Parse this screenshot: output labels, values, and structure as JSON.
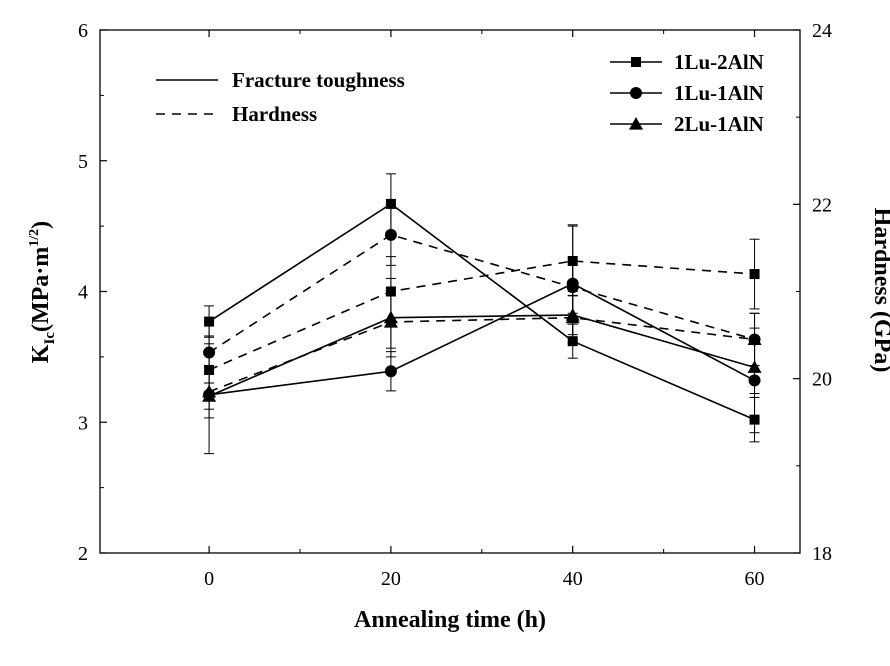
{
  "chart_data": {
    "type": "line",
    "xlabel": "Annealing time (h)",
    "ylabel_left": {
      "main": "K",
      "sub": "Ic",
      "units": "(MPa·m",
      "sup": "1/2",
      "close": ")"
    },
    "ylabel_right": "Hardness (GPa)",
    "x": [
      0,
      20,
      40,
      60
    ],
    "x_ticks": [
      "0",
      "20",
      "40",
      "60"
    ],
    "xlim": [
      -12,
      65
    ],
    "ylim_left": [
      2,
      6
    ],
    "yticks_left": [
      "2",
      "3",
      "4",
      "5",
      "6"
    ],
    "ylim_right": [
      18,
      24
    ],
    "yticks_right": [
      "18",
      "20",
      "22",
      "24"
    ],
    "line_styles": [
      {
        "label": "Fracture toughness",
        "dash": "solid"
      },
      {
        "label": "Hardness",
        "dash": "dashed"
      }
    ],
    "series": [
      {
        "name": "1Lu-2AlN",
        "marker": "square",
        "toughness": [
          3.77,
          4.67,
          3.62,
          3.02
        ],
        "toughness_err": [
          0.12,
          0.23,
          0.13,
          0.17
        ],
        "hardness": [
          20.1,
          21.0,
          21.35,
          21.2
        ],
        "hardness_err": [
          0.3,
          0.4,
          0.4,
          0.4
        ]
      },
      {
        "name": "1Lu-1AlN",
        "marker": "circle",
        "toughness": [
          3.21,
          3.39,
          4.06,
          3.32
        ],
        "toughness_err": [
          0.45,
          0.15,
          0.45,
          0.4
        ],
        "hardness": [
          20.3,
          21.65,
          21.05,
          20.45
        ],
        "hardness_err": [
          0.35,
          0.35,
          0.3,
          0.3
        ]
      },
      {
        "name": "2Lu-1AlN",
        "marker": "triangle",
        "toughness": [
          3.2,
          3.8,
          3.82,
          3.42
        ],
        "toughness_err": [
          0.1,
          0.3,
          0.15,
          0.2
        ],
        "hardness": [
          19.85,
          20.65,
          20.7,
          20.45
        ],
        "hardness_err": [
          0.3,
          0.3,
          0.3,
          0.3
        ]
      }
    ]
  }
}
